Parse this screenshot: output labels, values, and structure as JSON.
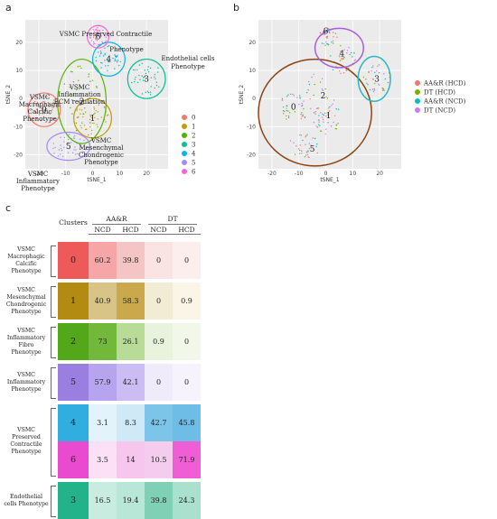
{
  "panels": {
    "a": "a",
    "b": "b",
    "c": "c"
  },
  "chart_data": [
    {
      "type": "scatter",
      "panel": "a",
      "xlabel": "tSNE_1",
      "ylabel": "tSNE_2",
      "xlim": [
        -25,
        28
      ],
      "ylim": [
        -25,
        28
      ],
      "xticks": [
        -20,
        -10,
        0,
        10,
        20
      ],
      "yticks": [
        -20,
        -10,
        0,
        10,
        20
      ],
      "legend": {
        "placement": "right",
        "entries": [
          "0",
          "1",
          "2",
          "3",
          "4",
          "5",
          "6"
        ],
        "colors": [
          "#f8766d",
          "#c49a00",
          "#53b400",
          "#00c094",
          "#00b6eb",
          "#a58aff",
          "#fb61d7"
        ]
      },
      "annotations": [
        "VSMC Preserved Contractile",
        "Phenotype",
        "Endothelial cells",
        "Phenotype",
        "VSMC",
        "Inflammation",
        "ECM regulation",
        "VSMC",
        "Macrophagic",
        "Calcific",
        "Phenotype",
        "VSMC",
        "Mesenchymal",
        "Chondrogenic",
        "Phenotype",
        "VSMC",
        "Inflammatory",
        "Phenotype"
      ],
      "clusters": [
        {
          "label": "0",
          "cx": -18,
          "cy": -4,
          "rx": 6,
          "ry": 6,
          "color": "#f8766d"
        },
        {
          "label": "1",
          "cx": 0,
          "cy": -7,
          "rx": 7,
          "ry": 7,
          "color": "#c49a00"
        },
        {
          "label": "2",
          "cx": -4,
          "cy": -1,
          "rx": 9,
          "ry": 15,
          "color": "#53b400"
        },
        {
          "label": "3",
          "cx": 20,
          "cy": 7,
          "rx": 7,
          "ry": 7,
          "color": "#00c094"
        },
        {
          "label": "4",
          "cx": 6,
          "cy": 14,
          "rx": 6,
          "ry": 6,
          "color": "#00b6eb"
        },
        {
          "label": "5",
          "cx": -9,
          "cy": -17,
          "rx": 8,
          "ry": 5,
          "color": "#a58aff"
        },
        {
          "label": "6",
          "cx": 2,
          "cy": 22,
          "rx": 4,
          "ry": 4,
          "color": "#fb61d7"
        }
      ]
    },
    {
      "type": "scatter",
      "panel": "b",
      "xlabel": "tSNE_1",
      "ylabel": "tSNE_2",
      "xlim": [
        -25,
        28
      ],
      "ylim": [
        -25,
        28
      ],
      "xticks": [
        -20,
        -10,
        0,
        10,
        20
      ],
      "yticks": [
        -20,
        -10,
        0,
        10,
        20
      ],
      "legend": {
        "placement": "right",
        "entries": [
          "AA&R (HCD)",
          "DT (HCD)",
          "AA&R (NCD)",
          "DT (NCD)"
        ],
        "colors": [
          "#f8766d",
          "#7cae00",
          "#00bfc4",
          "#c77cff"
        ]
      },
      "cluster_labels": [
        {
          "label": "6",
          "x": 0,
          "y": 24
        },
        {
          "label": "4",
          "x": 6,
          "y": 16
        },
        {
          "label": "3",
          "x": 19,
          "y": 7
        },
        {
          "label": "2",
          "x": -1,
          "y": 1
        },
        {
          "label": "0",
          "x": -12,
          "y": -3
        },
        {
          "label": "1",
          "x": 1,
          "y": -6
        },
        {
          "label": "5",
          "x": -5,
          "y": -18
        }
      ],
      "ellipses": [
        {
          "cx": -4,
          "cy": -5,
          "rx": 21,
          "ry": 19,
          "color": "#8b4513"
        },
        {
          "cx": 5,
          "cy": 18,
          "rx": 9,
          "ry": 7,
          "color": "#a55fe0"
        },
        {
          "cx": 18,
          "cy": 7,
          "rx": 6,
          "ry": 8,
          "color": "#2ab7c2"
        }
      ]
    }
  ],
  "table": {
    "header_clusters": "Clusters",
    "group1": "AA&R",
    "group2": "DT",
    "subheaders": [
      "NCD",
      "HCD",
      "NCD",
      "HCD"
    ],
    "rows": [
      {
        "label": "VSMC Macrophagic Calcific Phenotype",
        "cluster": "0",
        "values": [
          "60.2",
          "39.8",
          "0",
          "0"
        ],
        "colors": [
          "#ee5a5a",
          "#f6a6a6",
          "#f4c5c5",
          "#fbe3e3",
          "#fdeeee"
        ]
      },
      {
        "label": "VSMC Mesenchymal Chondrogenic Phenotype",
        "cluster": "1",
        "values": [
          "40.9",
          "58.3",
          "0",
          "0.9"
        ],
        "colors": [
          "#b38b12",
          "#d9c488",
          "#c9a94b",
          "#f3ecd4",
          "#faf5e7"
        ]
      },
      {
        "label": "VSMC Inflammatory Fibro Phenotype",
        "cluster": "2",
        "values": [
          "73",
          "26.1",
          "0.9",
          "0"
        ],
        "colors": [
          "#53a81a",
          "#72b83b",
          "#b8dc98",
          "#e8f3de",
          "#f1f8ea"
        ]
      },
      {
        "label": "VSMC Inflammatory Phenotype",
        "cluster": "5",
        "values": [
          "57.9",
          "42.1",
          "0",
          "0"
        ],
        "colors": [
          "#9b7fe0",
          "#b7a4ee",
          "#cbbdf3",
          "#efebfb",
          "#f6f3fd"
        ]
      },
      {
        "label": "VSMC Preserved Contractile Phenotype",
        "cluster": "4",
        "values": [
          "3.1",
          "8.3",
          "42.7",
          "45.8"
        ],
        "colors": [
          "#30aee0",
          "#e3f3fb",
          "#cfe9f6",
          "#7cc5e8",
          "#6dbde6"
        ]
      },
      {
        "label": "",
        "cluster": "6",
        "values": [
          "3.5",
          "14",
          "10.5",
          "71.9"
        ],
        "colors": [
          "#e94ad0",
          "#fbe0f6",
          "#f6c6ee",
          "#f4cdee",
          "#ef5ed4"
        ]
      },
      {
        "label": "Endothelial cells Phenotype",
        "cluster": "3",
        "values": [
          "16.5",
          "19.4",
          "39.8",
          "24.3"
        ],
        "colors": [
          "#22b38a",
          "#c8ece0",
          "#b8e6d7",
          "#7fd0b5",
          "#a9e0ce"
        ]
      }
    ]
  }
}
